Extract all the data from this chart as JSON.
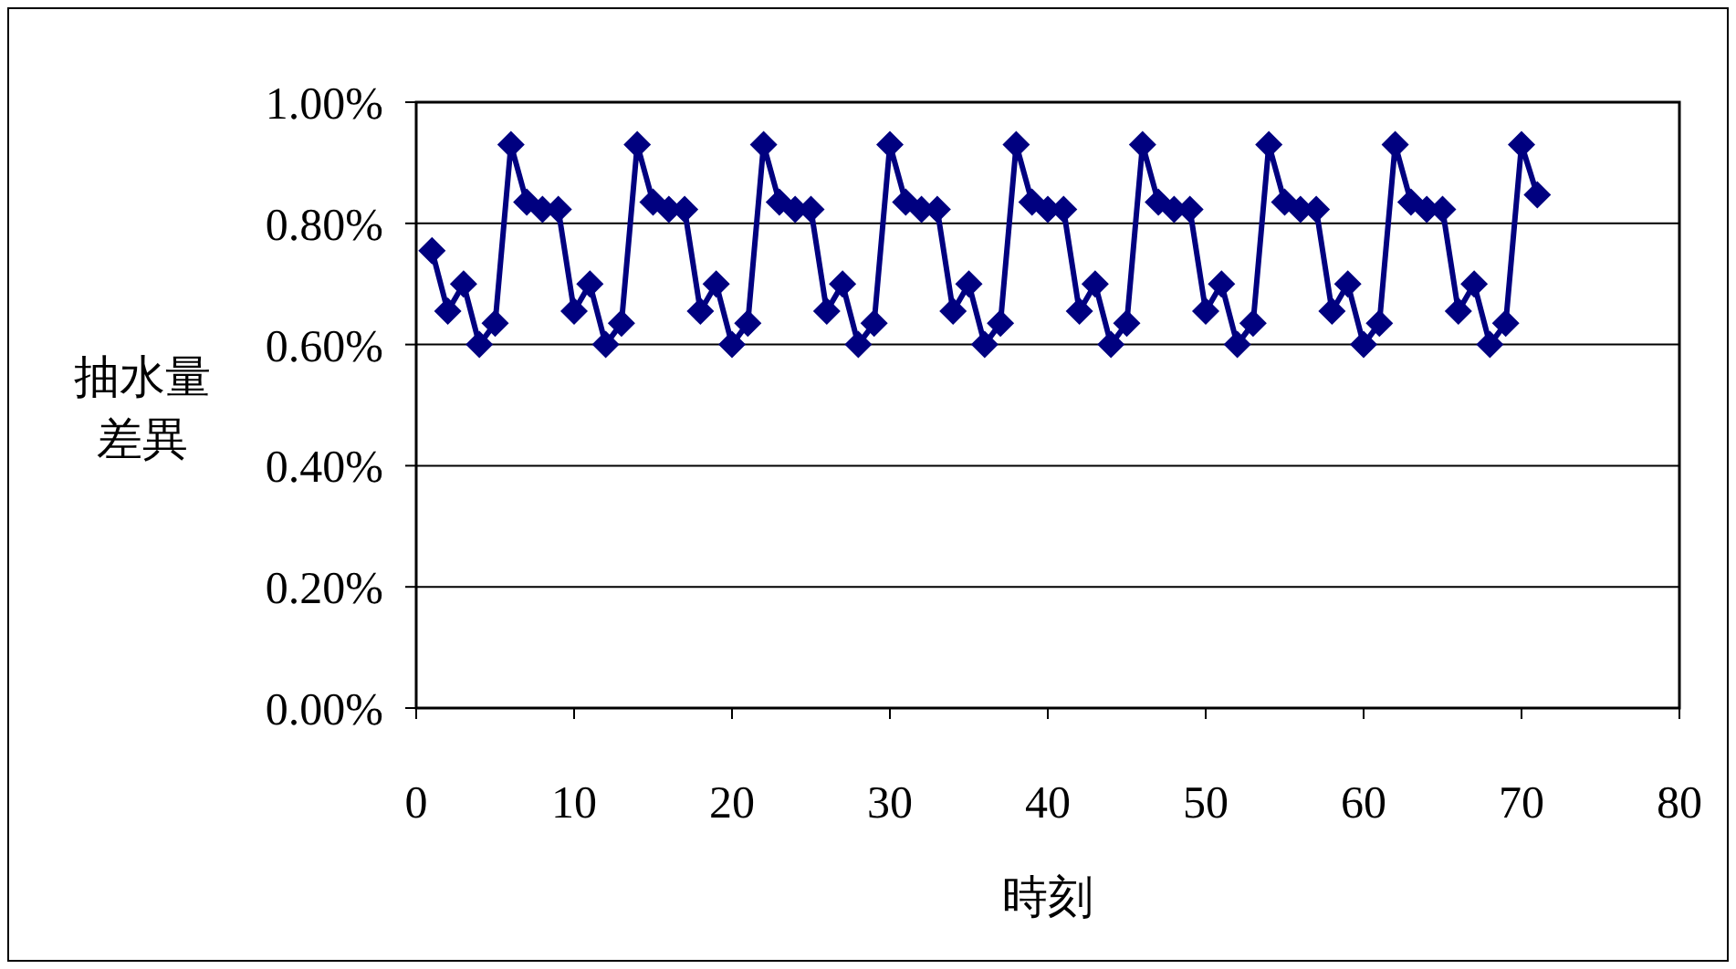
{
  "chart_data": {
    "type": "line",
    "xlabel": "時刻",
    "ylabel": "抽水量差異",
    "x": [
      1,
      2,
      3,
      4,
      5,
      6,
      7,
      8,
      9,
      10,
      11,
      12,
      13,
      14,
      15,
      16,
      17,
      18,
      19,
      20,
      21,
      22,
      23,
      24,
      25,
      26,
      27,
      28,
      29,
      30,
      31,
      32,
      33,
      34,
      35,
      36,
      37,
      38,
      39,
      40,
      41,
      42,
      43,
      44,
      45,
      46,
      47,
      48,
      49,
      50,
      51,
      52,
      53,
      54,
      55,
      56,
      57,
      58,
      59,
      60,
      61,
      62,
      63,
      64,
      65,
      66,
      67,
      68,
      69,
      70,
      71
    ],
    "series": [
      {
        "color": "#000080",
        "values": [
          0.755,
          0.655,
          0.7,
          0.6,
          0.635,
          0.93,
          0.835,
          0.823,
          0.823,
          0.655,
          0.7,
          0.6,
          0.635,
          0.93,
          0.835,
          0.823,
          0.823,
          0.655,
          0.7,
          0.6,
          0.635,
          0.93,
          0.835,
          0.823,
          0.823,
          0.655,
          0.7,
          0.6,
          0.635,
          0.93,
          0.835,
          0.823,
          0.823,
          0.655,
          0.7,
          0.6,
          0.635,
          0.93,
          0.835,
          0.823,
          0.823,
          0.655,
          0.7,
          0.6,
          0.635,
          0.93,
          0.835,
          0.823,
          0.823,
          0.655,
          0.7,
          0.6,
          0.635,
          0.93,
          0.835,
          0.823,
          0.823,
          0.655,
          0.7,
          0.6,
          0.635,
          0.93,
          0.835,
          0.823,
          0.823,
          0.655,
          0.7,
          0.6,
          0.635,
          0.93,
          0.847
        ]
      }
    ],
    "xlim": [
      0,
      80
    ],
    "xticks": [
      0,
      10,
      20,
      30,
      40,
      50,
      60,
      70,
      80
    ],
    "ylim": [
      0,
      1
    ],
    "yticks": [
      {
        "value": 0,
        "label": "0.00%"
      },
      {
        "value": 0.2,
        "label": "0.20%"
      },
      {
        "value": 0.4,
        "label": "0.40%"
      },
      {
        "value": 0.6,
        "label": "0.60%"
      },
      {
        "value": 0.8,
        "label": "0.80%"
      },
      {
        "value": 1,
        "label": "1.00%"
      }
    ],
    "grid": "y",
    "marker": "diamond",
    "line_style": "solid"
  }
}
